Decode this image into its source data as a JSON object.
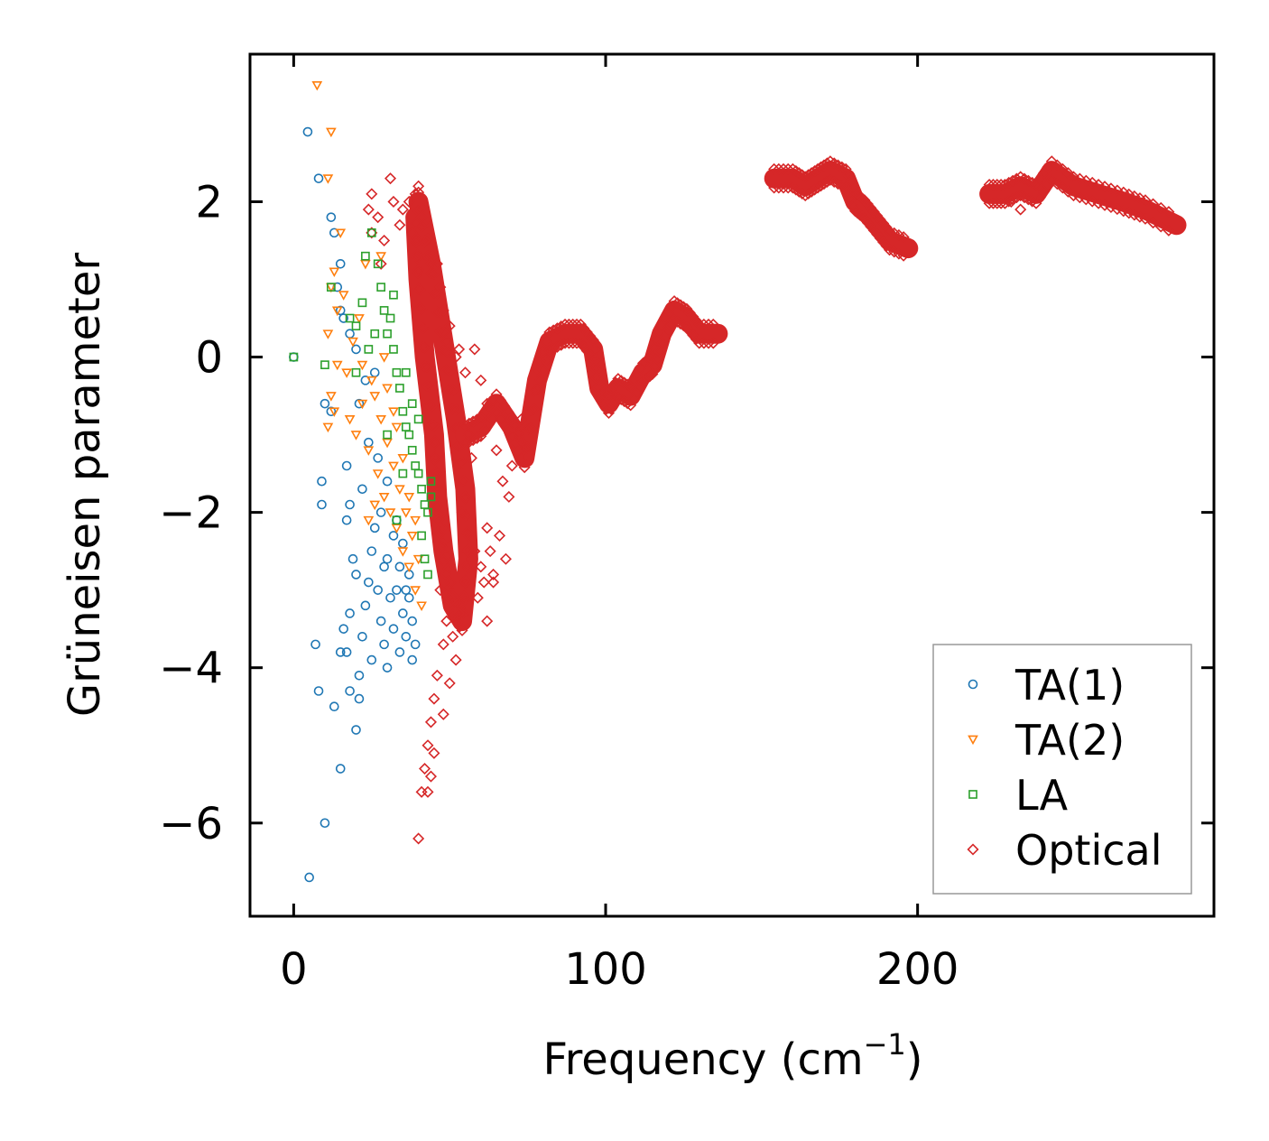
{
  "chart_data": {
    "type": "scatter",
    "title": "",
    "xlabel_main": "Frequency (cm",
    "xlabel_sup": "−1",
    "xlabel_close": ")",
    "ylabel": "Grüneisen parameter",
    "xlim": [
      -14,
      295
    ],
    "ylim": [
      -7.2,
      3.9
    ],
    "xticks": [
      0,
      100,
      200
    ],
    "xtick_labels": [
      "0",
      "100",
      "200"
    ],
    "yticks": [
      -6,
      -4,
      -2,
      0,
      2
    ],
    "ytick_labels": [
      "−6",
      "−4",
      "−2",
      "0",
      "2"
    ],
    "grid": false,
    "legend_position": "lower-right",
    "series": [
      {
        "name": "TA(1)",
        "marker": "circle",
        "color": "#1f77b4",
        "description": "acoustic branch, approx. 0-40 cm-1, gamma from -6.7 to 2.9",
        "points": [
          [
            0,
            0
          ],
          [
            4.5,
            2.9
          ],
          [
            5,
            -6.7
          ],
          [
            8,
            2.3
          ],
          [
            10,
            -6
          ],
          [
            7,
            -3.7
          ],
          [
            8,
            -4.3
          ],
          [
            13,
            -4.5
          ],
          [
            15,
            -5.3
          ],
          [
            12,
            1.8
          ],
          [
            13,
            1.6
          ],
          [
            15,
            1.2
          ],
          [
            14,
            0.9
          ],
          [
            15,
            0.6
          ],
          [
            16,
            0.5
          ],
          [
            18,
            0.3
          ],
          [
            20,
            0.1
          ],
          [
            9,
            -1.6
          ],
          [
            9,
            -1.9
          ],
          [
            10,
            -0.6
          ],
          [
            12,
            -0.7
          ],
          [
            17,
            -1.4
          ],
          [
            18,
            -1.9
          ],
          [
            17,
            -2.1
          ],
          [
            19,
            -2.6
          ],
          [
            20,
            -2.8
          ],
          [
            18,
            -3.3
          ],
          [
            16,
            -3.5
          ],
          [
            15,
            -3.8
          ],
          [
            17,
            -3.8
          ],
          [
            18,
            -4.3
          ],
          [
            21,
            -4.4
          ],
          [
            21,
            -4.1
          ],
          [
            20,
            -4.8
          ],
          [
            22,
            -3.6
          ],
          [
            23,
            -3.2
          ],
          [
            24,
            -2.9
          ],
          [
            25,
            -2.5
          ],
          [
            26,
            -2.2
          ],
          [
            27,
            -3.0
          ],
          [
            28,
            -3.4
          ],
          [
            29,
            -3.7
          ],
          [
            30,
            -2.6
          ],
          [
            31,
            -3.1
          ],
          [
            32,
            -3.5
          ],
          [
            33,
            -3.0
          ],
          [
            34,
            -3.8
          ],
          [
            35,
            -3.3
          ],
          [
            36,
            -3.6
          ],
          [
            37,
            -3.1
          ],
          [
            38,
            -3.4
          ],
          [
            39,
            -3.7
          ],
          [
            36,
            -3.0
          ],
          [
            34,
            -2.7
          ],
          [
            38,
            -3.9
          ],
          [
            22,
            -1.7
          ],
          [
            24,
            -1.1
          ],
          [
            23,
            -0.3
          ],
          [
            21,
            -0.6
          ],
          [
            26,
            -0.2
          ],
          [
            27,
            -1.3
          ],
          [
            28,
            -2.0
          ],
          [
            30,
            -1.6
          ],
          [
            32,
            -2.3
          ],
          [
            29,
            -2.7
          ],
          [
            25,
            -3.9
          ],
          [
            30,
            -4.0
          ],
          [
            37,
            -2.8
          ],
          [
            35,
            -2.4
          ],
          [
            33,
            -2.1
          ]
        ]
      },
      {
        "name": "TA(2)",
        "marker": "triangle-down",
        "color": "#ff7f0e",
        "description": "acoustic branch, approx. 5-42 cm-1, gamma from -3.2 to 3.5",
        "points": [
          [
            7.5,
            3.5
          ],
          [
            12,
            2.9
          ],
          [
            11,
            2.3
          ],
          [
            15,
            1.6
          ],
          [
            13,
            1.1
          ],
          [
            12,
            0.9
          ],
          [
            16,
            0.8
          ],
          [
            14,
            0.6
          ],
          [
            21,
            0.5
          ],
          [
            11,
            0.3
          ],
          [
            14,
            -0.1
          ],
          [
            17,
            -0.2
          ],
          [
            12,
            -0.5
          ],
          [
            11,
            -0.9
          ],
          [
            13,
            -0.7
          ],
          [
            18,
            -0.8
          ],
          [
            20,
            -1.0
          ],
          [
            22,
            -0.6
          ],
          [
            24,
            -1.2
          ],
          [
            26,
            -0.5
          ],
          [
            27,
            -1.5
          ],
          [
            28,
            -0.8
          ],
          [
            29,
            -1.8
          ],
          [
            30,
            -1.1
          ],
          [
            31,
            -2.0
          ],
          [
            32,
            -1.4
          ],
          [
            33,
            -2.2
          ],
          [
            34,
            -1.7
          ],
          [
            35,
            -2.5
          ],
          [
            36,
            -2.0
          ],
          [
            37,
            -2.7
          ],
          [
            38,
            -2.3
          ],
          [
            39,
            -3.0
          ],
          [
            40,
            -2.6
          ],
          [
            41,
            -3.2
          ],
          [
            30,
            -0.4
          ],
          [
            32,
            -0.7
          ],
          [
            25,
            -0.3
          ],
          [
            22,
            -0.1
          ],
          [
            19,
            0.2
          ],
          [
            23,
            1.2
          ],
          [
            28,
            1.3
          ],
          [
            29,
            0.0
          ],
          [
            33,
            -0.9
          ],
          [
            35,
            -1.3
          ],
          [
            37,
            -1.8
          ],
          [
            39,
            -2.1
          ],
          [
            26,
            -1.9
          ],
          [
            24,
            -2.1
          ]
        ]
      },
      {
        "name": "LA",
        "marker": "square",
        "color": "#2ca02c",
        "description": "acoustic branch, approx. 0-45 cm-1, gamma from -2.8 to 1.6",
        "points": [
          [
            0,
            0
          ],
          [
            10,
            -0.1
          ],
          [
            12,
            0.9
          ],
          [
            18,
            0.5
          ],
          [
            20,
            0.4
          ],
          [
            22,
            0.7
          ],
          [
            23,
            1.3
          ],
          [
            25,
            1.6
          ],
          [
            27,
            1.2
          ],
          [
            28,
            0.9
          ],
          [
            29,
            0.6
          ],
          [
            30,
            0.3
          ],
          [
            31,
            0.5
          ],
          [
            32,
            0.1
          ],
          [
            33,
            -0.2
          ],
          [
            34,
            -0.4
          ],
          [
            35,
            -0.7
          ],
          [
            36,
            -0.9
          ],
          [
            37,
            -1.0
          ],
          [
            38,
            -1.2
          ],
          [
            39,
            -1.4
          ],
          [
            40,
            -1.5
          ],
          [
            41,
            -1.7
          ],
          [
            42,
            -1.9
          ],
          [
            43,
            -2.0
          ],
          [
            44,
            -1.6
          ],
          [
            44,
            -1.8
          ],
          [
            41,
            -2.3
          ],
          [
            42,
            -2.6
          ],
          [
            43,
            -2.8
          ],
          [
            36,
            -0.2
          ],
          [
            38,
            -0.6
          ],
          [
            40,
            -0.8
          ],
          [
            26,
            0.3
          ],
          [
            24,
            0.1
          ],
          [
            20,
            -0.2
          ],
          [
            33,
            -2.1
          ],
          [
            35,
            -1.5
          ],
          [
            30,
            -1.0
          ],
          [
            32,
            0.8
          ]
        ]
      },
      {
        "name": "Optical",
        "marker": "diamond",
        "color": "#d62728",
        "description": "optical branches, approx. 23-283 cm-1",
        "scattered_points": [
          [
            24,
            1.9
          ],
          [
            25,
            1.6
          ],
          [
            25,
            2.1
          ],
          [
            27,
            1.8
          ],
          [
            28,
            1.2
          ],
          [
            29,
            1.5
          ],
          [
            31,
            2.3
          ],
          [
            32,
            2.0
          ],
          [
            34,
            1.7
          ],
          [
            35,
            1.9
          ],
          [
            37,
            2.0
          ],
          [
            38,
            1.6
          ],
          [
            39,
            2.1
          ],
          [
            40,
            2.2
          ],
          [
            41,
            1.8
          ],
          [
            42,
            1.5
          ],
          [
            43,
            1.3
          ],
          [
            44,
            1.2
          ],
          [
            46,
            1.2
          ],
          [
            47,
            0.9
          ],
          [
            48,
            0.6
          ],
          [
            50,
            0.4
          ],
          [
            49,
            0.2
          ],
          [
            52,
            0.0
          ],
          [
            53,
            0.1
          ],
          [
            55,
            -0.2
          ],
          [
            58,
            0.1
          ],
          [
            60,
            -0.3
          ],
          [
            62,
            -0.6
          ],
          [
            65,
            -1.2
          ],
          [
            67,
            -1.6
          ],
          [
            69,
            -1.8
          ],
          [
            56,
            -1.0
          ],
          [
            57,
            -1.3
          ],
          [
            55,
            -1.8
          ],
          [
            54,
            -2.0
          ],
          [
            56,
            -2.3
          ],
          [
            58,
            -2.5
          ],
          [
            60,
            -2.7
          ],
          [
            62,
            -2.2
          ],
          [
            66,
            -2.3
          ],
          [
            68,
            -2.6
          ],
          [
            50,
            -3.1
          ],
          [
            49,
            -3.4
          ],
          [
            48,
            -3.7
          ],
          [
            46,
            -4.1
          ],
          [
            45,
            -4.4
          ],
          [
            44,
            -4.7
          ],
          [
            43,
            -5.0
          ],
          [
            42,
            -5.3
          ],
          [
            41,
            -5.6
          ],
          [
            40,
            -6.2
          ],
          [
            47,
            -3.0
          ],
          [
            51,
            -3.6
          ],
          [
            53,
            -3.3
          ],
          [
            55,
            -2.9
          ],
          [
            57,
            -2.6
          ],
          [
            59,
            -3.1
          ],
          [
            61,
            -2.9
          ],
          [
            63,
            -2.5
          ],
          [
            64,
            -2.8
          ],
          [
            52,
            -3.9
          ],
          [
            50,
            -4.2
          ],
          [
            48,
            -4.6
          ],
          [
            43,
            -5.6
          ],
          [
            45,
            -5.1
          ],
          [
            44,
            -5.4
          ],
          [
            70,
            -1.4
          ],
          [
            74,
            -1.1
          ],
          [
            73,
            -0.8
          ],
          [
            233,
            1.9
          ],
          [
            230,
            2.0
          ],
          [
            64,
            -2.9
          ],
          [
            62,
            -3.4
          ]
        ],
        "band_ridges": [
          [
            [
              40,
              2.0
            ],
            [
              44,
              1.2
            ],
            [
              48,
              0.2
            ],
            [
              52,
              -0.8
            ],
            [
              55,
              -1.7
            ],
            [
              56,
              -2.6
            ],
            [
              54,
              -3.4
            ],
            [
              51,
              -3.2
            ],
            [
              48,
              -2.5
            ],
            [
              46,
              -1.8
            ],
            [
              45,
              -1.0
            ],
            [
              42,
              0.0
            ],
            [
              40,
              1.0
            ],
            [
              39,
              1.8
            ]
          ],
          [
            [
              55,
              -1.0
            ],
            [
              60,
              -0.9
            ],
            [
              65,
              -0.6
            ],
            [
              70,
              -0.9
            ],
            [
              74,
              -1.3
            ],
            [
              78,
              -0.3
            ],
            [
              82,
              0.2
            ],
            [
              87,
              0.3
            ],
            [
              92,
              0.3
            ],
            [
              96,
              0.1
            ],
            [
              98,
              -0.4
            ],
            [
              101,
              -0.6
            ],
            [
              104,
              -0.4
            ],
            [
              108,
              -0.5
            ],
            [
              112,
              -0.2
            ],
            [
              115,
              -0.1
            ],
            [
              118,
              0.3
            ],
            [
              122,
              0.6
            ],
            [
              126,
              0.5
            ],
            [
              130,
              0.3
            ],
            [
              136,
              0.3
            ]
          ],
          [
            [
              154,
              2.3
            ],
            [
              160,
              2.3
            ],
            [
              164,
              2.2
            ],
            [
              168,
              2.3
            ],
            [
              172,
              2.4
            ],
            [
              177,
              2.3
            ],
            [
              180,
              2.0
            ],
            [
              183,
              1.9
            ],
            [
              187,
              1.7
            ],
            [
              191,
              1.5
            ],
            [
              197,
              1.4
            ]
          ],
          [
            [
              223,
              2.1
            ],
            [
              228,
              2.1
            ],
            [
              233,
              2.2
            ],
            [
              238,
              2.1
            ],
            [
              243,
              2.4
            ],
            [
              250,
              2.2
            ],
            [
              258,
              2.1
            ],
            [
              266,
              2.0
            ],
            [
              273,
              1.9
            ],
            [
              283,
              1.7
            ]
          ]
        ]
      }
    ]
  }
}
